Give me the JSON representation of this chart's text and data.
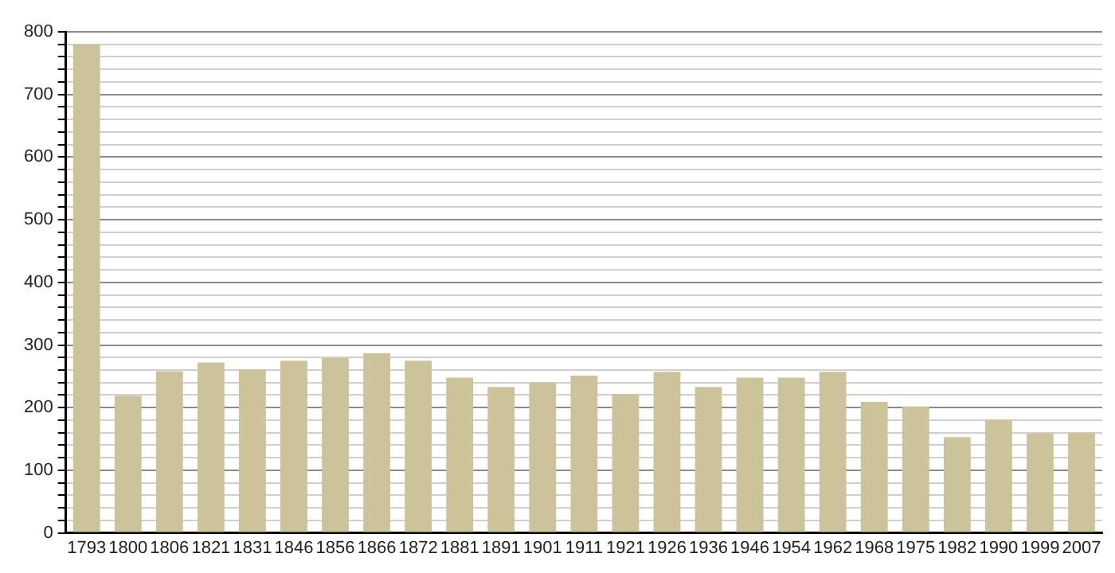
{
  "chart_data": {
    "type": "bar",
    "categories": [
      "1793",
      "1800",
      "1806",
      "1821",
      "1831",
      "1846",
      "1856",
      "1866",
      "1872",
      "1881",
      "1891",
      "1901",
      "1911",
      "1921",
      "1926",
      "1936",
      "1946",
      "1954",
      "1962",
      "1968",
      "1975",
      "1982",
      "1990",
      "1999",
      "2007"
    ],
    "values": [
      780,
      219,
      258,
      272,
      261,
      275,
      279,
      287,
      275,
      248,
      233,
      240,
      251,
      222,
      257,
      233,
      248,
      248,
      257,
      209,
      202,
      153,
      181,
      159,
      160
    ],
    "color": "#ccc39b",
    "ylim": [
      0,
      800
    ],
    "yticks": [
      0,
      {
        "value": 20,
        "label": null
      },
      {
        "value": 40,
        "label": null
      },
      {
        "value": 60,
        "label": null
      },
      {
        "value": 80,
        "label": null
      },
      100,
      {
        "value": 120,
        "label": null
      },
      {
        "value": 140,
        "label": null
      },
      {
        "value": 160,
        "label": null
      },
      {
        "value": 180,
        "label": null
      },
      200,
      {
        "value": 220,
        "label": null
      },
      {
        "value": 240,
        "label": null
      },
      {
        "value": 260,
        "label": null
      },
      {
        "value": 280,
        "label": null
      },
      300,
      {
        "value": 320,
        "label": null
      },
      {
        "value": 340,
        "label": null
      },
      {
        "value": 360,
        "label": null
      },
      {
        "value": 380,
        "label": null
      },
      400,
      {
        "value": 420,
        "label": null
      },
      {
        "value": 440,
        "label": null
      },
      {
        "value": 460,
        "label": null
      },
      {
        "value": 480,
        "label": null
      },
      500,
      {
        "value": 520,
        "label": null
      },
      {
        "value": 540,
        "label": null
      },
      {
        "value": 560,
        "label": null
      },
      {
        "value": 580,
        "label": null
      },
      600,
      {
        "value": 620,
        "label": null
      },
      {
        "value": 640,
        "label": null
      },
      {
        "value": 660,
        "label": null
      },
      {
        "value": 680,
        "label": null
      },
      700,
      {
        "value": 720,
        "label": null
      },
      {
        "value": 740,
        "label": null
      },
      {
        "value": 760,
        "label": null
      },
      {
        "value": 780,
        "label": null
      },
      800
    ],
    "grid": "y"
  }
}
